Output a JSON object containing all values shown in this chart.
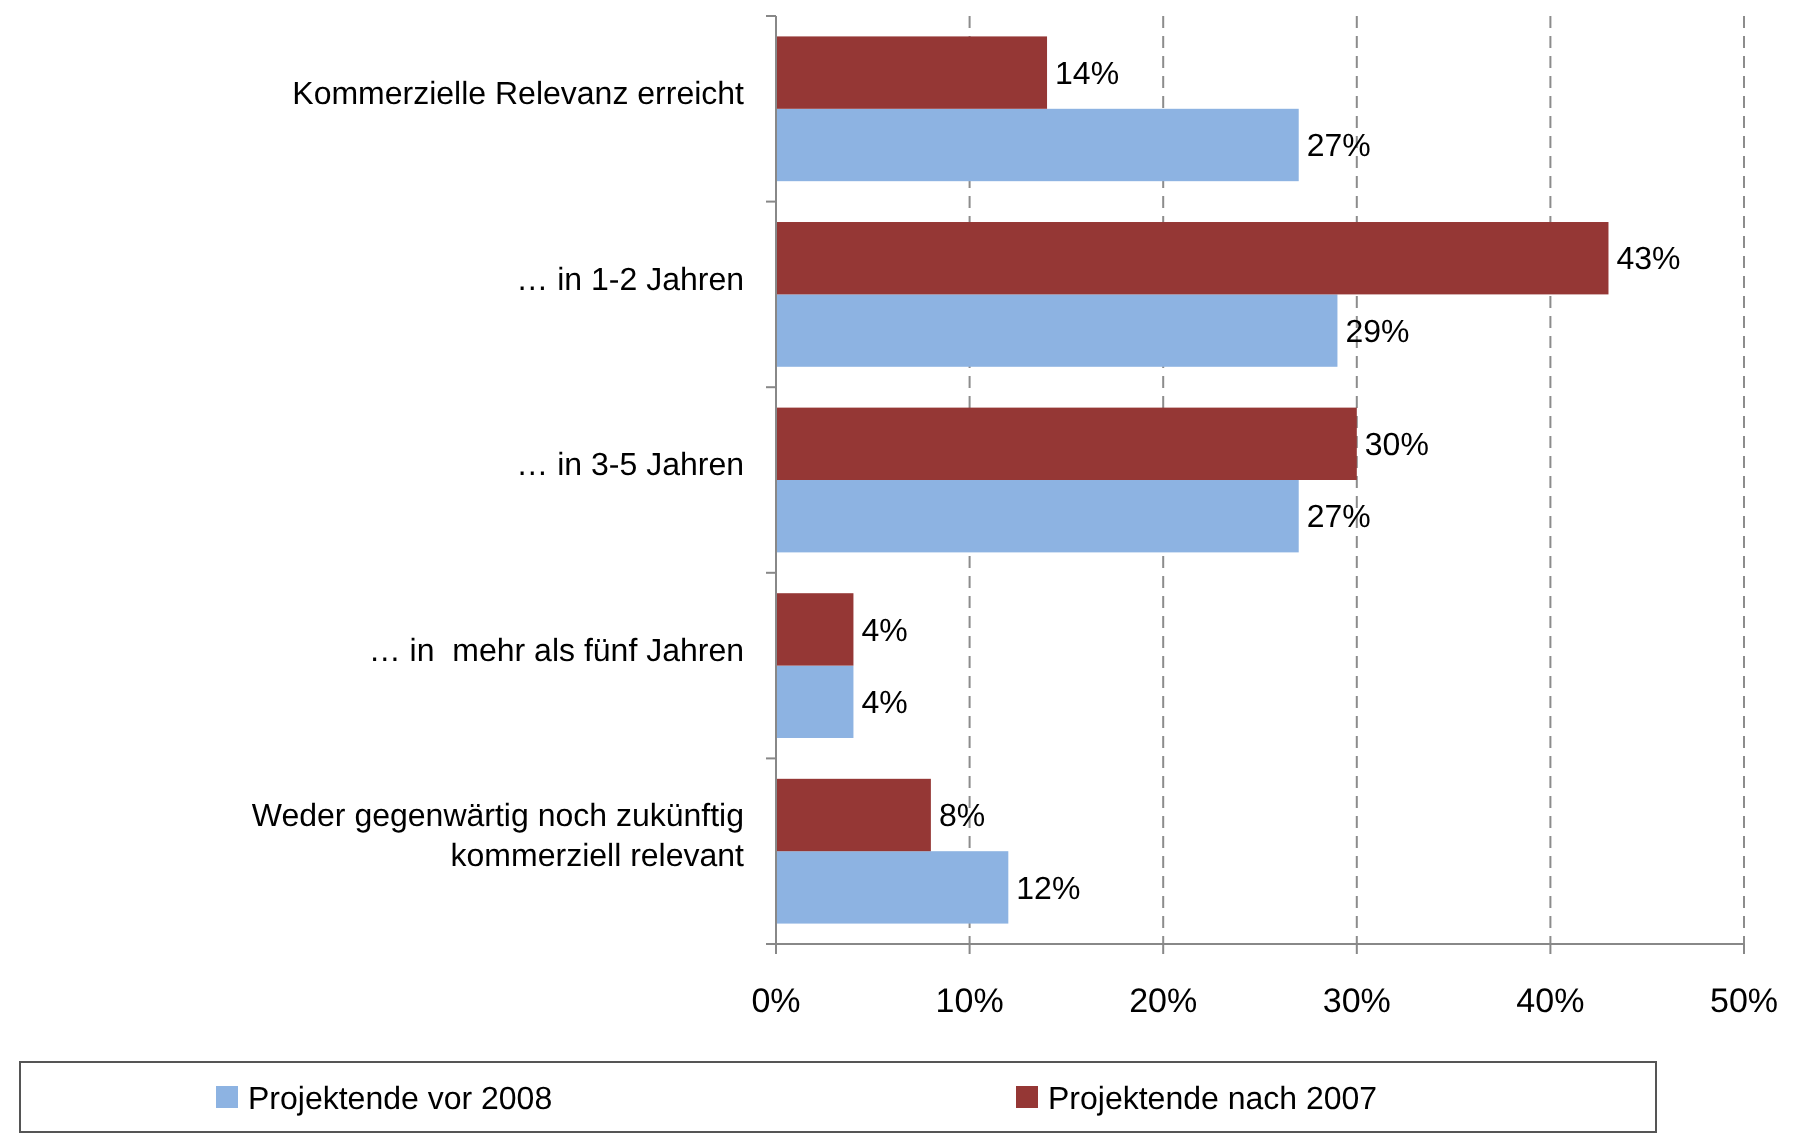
{
  "chart_data": {
    "type": "bar",
    "orientation": "horizontal",
    "categories": [
      "Kommerzielle Relevanz erreicht",
      "… in 1-2 Jahren",
      "… in 3-5 Jahren",
      "… in  mehr als fünf Jahren",
      "Weder gegenwärtig noch zukünftig kommerziell relevant"
    ],
    "series": [
      {
        "name": "Projektende vor 2008",
        "color": "#8db3e2",
        "values": [
          27,
          29,
          27,
          4,
          12
        ],
        "value_labels": [
          "27%",
          "29%",
          "27%",
          "4%",
          "12%"
        ]
      },
      {
        "name": "Projektende nach 2007",
        "color": "#953735",
        "values": [
          14,
          43,
          30,
          4,
          8
        ],
        "value_labels": [
          "14%",
          "43%",
          "30%",
          "4%",
          "8%"
        ]
      }
    ],
    "xlim": [
      0,
      50
    ],
    "xticks": [
      {
        "value": 0,
        "label": "0%"
      },
      {
        "value": 10,
        "label": "10%"
      },
      {
        "value": 20,
        "label": "20%"
      },
      {
        "value": 30,
        "label": "30%"
      },
      {
        "value": 40,
        "label": "40%"
      },
      {
        "value": 50,
        "label": "50%"
      }
    ],
    "grid": "x",
    "legend": "bottom"
  }
}
